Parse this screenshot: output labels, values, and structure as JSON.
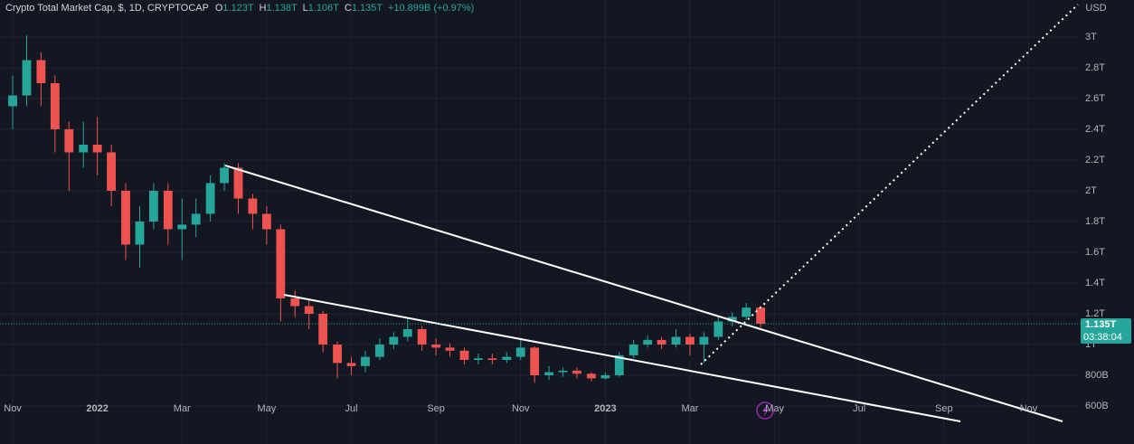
{
  "header": {
    "symbol": "Crypto Total Market Cap, $, 1D, CRYPTOCAP",
    "o_label": "O",
    "o": "1.123T",
    "h_label": "H",
    "h": "1.138T",
    "l_label": "L",
    "l": "1.106T",
    "c_label": "C",
    "c": "1.135T",
    "change": "+10.899B (+0.97%)"
  },
  "chart_data": {
    "type": "candlestick",
    "currency": "USD",
    "up_color": "#26a69a",
    "down_color": "#ef5350",
    "x": [
      0,
      0.33,
      0.67,
      1,
      1.33,
      1.67,
      2,
      2.33,
      2.67,
      3,
      3.33,
      3.67,
      4,
      4.33,
      4.67,
      5,
      5.33,
      5.67,
      6,
      6.33,
      6.67,
      7,
      7.33,
      7.67,
      8,
      8.33,
      8.67,
      9,
      9.33,
      9.67,
      10,
      10.33,
      10.67,
      11,
      11.33,
      11.67,
      12,
      12.33,
      12.67,
      13,
      13.33,
      13.67,
      14,
      14.33,
      14.67,
      15,
      15.33,
      15.67,
      16,
      16.33,
      16.67,
      17,
      17.33,
      17.67
    ],
    "open": [
      2.55,
      2.62,
      2.85,
      2.7,
      2.4,
      2.25,
      2.3,
      2.25,
      2.0,
      1.65,
      1.8,
      2.0,
      1.75,
      1.78,
      1.85,
      2.05,
      2.15,
      1.95,
      1.85,
      1.75,
      1.3,
      1.25,
      1.2,
      1.0,
      0.88,
      0.86,
      0.92,
      1.0,
      1.05,
      1.1,
      1.0,
      0.98,
      0.96,
      0.9,
      0.91,
      0.9,
      0.92,
      0.98,
      0.8,
      0.82,
      0.83,
      0.81,
      0.78,
      0.8,
      0.93,
      1.0,
      1.03,
      1.0,
      1.05,
      1.0,
      1.05,
      1.15,
      1.18,
      1.24
    ],
    "high": [
      2.75,
      3.01,
      2.9,
      2.75,
      2.45,
      2.45,
      2.48,
      2.3,
      2.05,
      1.9,
      2.05,
      2.05,
      1.95,
      1.95,
      2.1,
      2.18,
      2.18,
      1.98,
      1.9,
      1.78,
      1.35,
      1.3,
      1.22,
      1.02,
      0.92,
      0.96,
      1.04,
      1.08,
      1.17,
      1.12,
      1.04,
      1.01,
      0.98,
      0.94,
      0.94,
      0.95,
      1.03,
      0.99,
      0.86,
      0.85,
      0.85,
      0.82,
      0.82,
      0.95,
      1.03,
      1.06,
      1.05,
      1.1,
      1.07,
      1.08,
      1.18,
      1.21,
      1.27,
      1.25
    ],
    "low": [
      2.4,
      2.55,
      2.55,
      2.25,
      2.0,
      2.15,
      2.1,
      1.9,
      1.55,
      1.5,
      1.75,
      1.65,
      1.55,
      1.7,
      1.8,
      2.0,
      1.85,
      1.75,
      1.65,
      1.15,
      1.18,
      1.1,
      0.95,
      0.78,
      0.8,
      0.82,
      0.9,
      0.97,
      1.02,
      0.96,
      0.93,
      0.92,
      0.87,
      0.87,
      0.87,
      0.88,
      0.9,
      0.75,
      0.77,
      0.79,
      0.78,
      0.76,
      0.77,
      0.79,
      0.91,
      0.98,
      0.97,
      0.98,
      0.93,
      0.88,
      1.03,
      1.12,
      1.16,
      1.11
    ],
    "close": [
      2.62,
      2.85,
      2.7,
      2.4,
      2.25,
      2.3,
      2.25,
      2.0,
      1.65,
      1.8,
      2.0,
      1.75,
      1.78,
      1.85,
      2.05,
      2.15,
      1.95,
      1.85,
      1.75,
      1.3,
      1.25,
      1.2,
      1.0,
      0.88,
      0.86,
      0.92,
      1.0,
      1.05,
      1.1,
      1.0,
      0.98,
      0.96,
      0.9,
      0.91,
      0.9,
      0.92,
      0.98,
      0.8,
      0.82,
      0.83,
      0.81,
      0.78,
      0.8,
      0.93,
      1.0,
      1.03,
      1.0,
      1.05,
      1.0,
      1.05,
      1.15,
      1.18,
      1.24,
      1.135
    ],
    "xlim": [
      -0.3,
      25.23
    ],
    "xticks": [
      {
        "value": 0,
        "label": "Nov"
      },
      {
        "value": 2,
        "label": "2022"
      },
      {
        "value": 4,
        "label": "Mar"
      },
      {
        "value": 6,
        "label": "May"
      },
      {
        "value": 8,
        "label": "Jul"
      },
      {
        "value": 10,
        "label": "Sep"
      },
      {
        "value": 12,
        "label": "Nov"
      },
      {
        "value": 14,
        "label": "2023"
      },
      {
        "value": 16,
        "label": "Mar"
      },
      {
        "value": 18,
        "label": "May"
      },
      {
        "value": 20,
        "label": "Jul"
      },
      {
        "value": 22,
        "label": "Sep"
      },
      {
        "value": 24,
        "label": "Nov"
      }
    ],
    "ylim": [
      0.353,
      3.241
    ],
    "yticks": [
      {
        "value": 0.6,
        "label": "600B"
      },
      {
        "value": 0.8,
        "label": "800B"
      },
      {
        "value": 1,
        "label": "1T"
      },
      {
        "value": 1.2,
        "label": "1.2T"
      },
      {
        "value": 1.4,
        "label": "1.4T"
      },
      {
        "value": 1.6,
        "label": "1.6T"
      },
      {
        "value": 1.8,
        "label": "1.8T"
      },
      {
        "value": 2,
        "label": "2T"
      },
      {
        "value": 2.2,
        "label": "2.2T"
      },
      {
        "value": 2.4,
        "label": "2.4T"
      },
      {
        "value": 2.6,
        "label": "2.6T"
      },
      {
        "value": 2.8,
        "label": "2.8T"
      },
      {
        "value": 3,
        "label": "3T"
      }
    ],
    "grid": true,
    "last_price": {
      "value": 1.135,
      "label": "1.135T"
    },
    "countdown": "03:38:04"
  }
}
